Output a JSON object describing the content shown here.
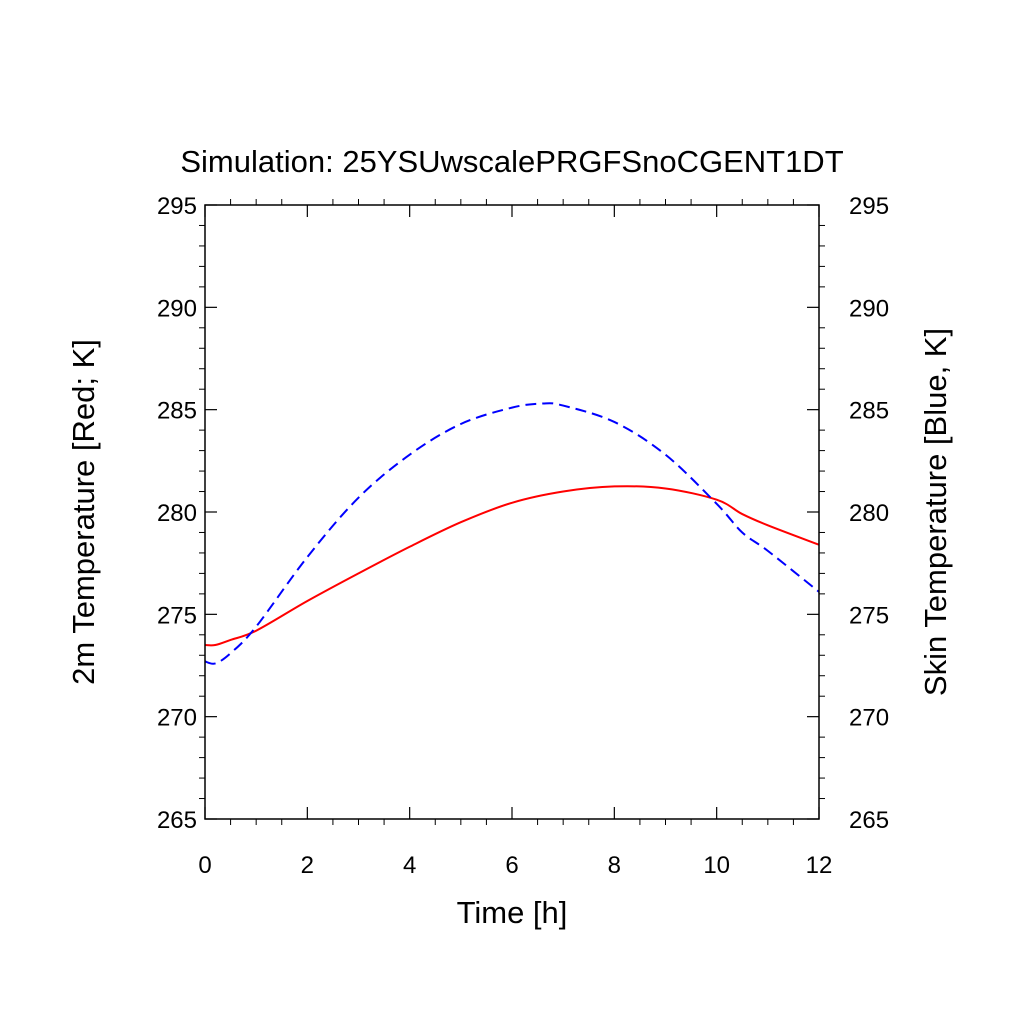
{
  "chart_data": {
    "type": "line",
    "title": "Simulation: 25YSUwscalePRGFSnoCGENT1DT",
    "xlabel": "Time [h]",
    "ylabel_left": "2m Temperature [Red; K]",
    "ylabel_right": "Skin Temperature [Blue, K]",
    "xlim": [
      0,
      12
    ],
    "ylim": [
      265,
      295
    ],
    "x_ticks": [
      "0",
      "2",
      "4",
      "6",
      "8",
      "10",
      "12"
    ],
    "y_ticks": [
      "265",
      "270",
      "275",
      "280",
      "285",
      "290",
      "295"
    ],
    "grid": false,
    "series": [
      {
        "color": "#ff0000",
        "dash": "solid",
        "axis": "left",
        "x": [
          0,
          0.2,
          0.5,
          1,
          2,
          3,
          4,
          5,
          6,
          7,
          8,
          9,
          10,
          10.5,
          11,
          12
        ],
        "y": [
          273.5,
          273.5,
          273.75,
          274.2,
          275.65,
          277.0,
          278.3,
          279.5,
          280.45,
          281.0,
          281.25,
          281.15,
          280.6,
          279.9,
          279.35,
          278.4
        ]
      },
      {
        "color": "#0000ff",
        "dash": "dashed",
        "axis": "right",
        "x": [
          0,
          0.2,
          0.5,
          1,
          2,
          3,
          4,
          5,
          6,
          6.6,
          7,
          8,
          9,
          10,
          10.5,
          11,
          12
        ],
        "y": [
          272.7,
          272.6,
          273.1,
          274.4,
          277.8,
          280.7,
          282.8,
          284.3,
          285.1,
          285.3,
          285.2,
          284.4,
          282.8,
          280.4,
          279.0,
          278.1,
          276.1
        ]
      }
    ]
  }
}
